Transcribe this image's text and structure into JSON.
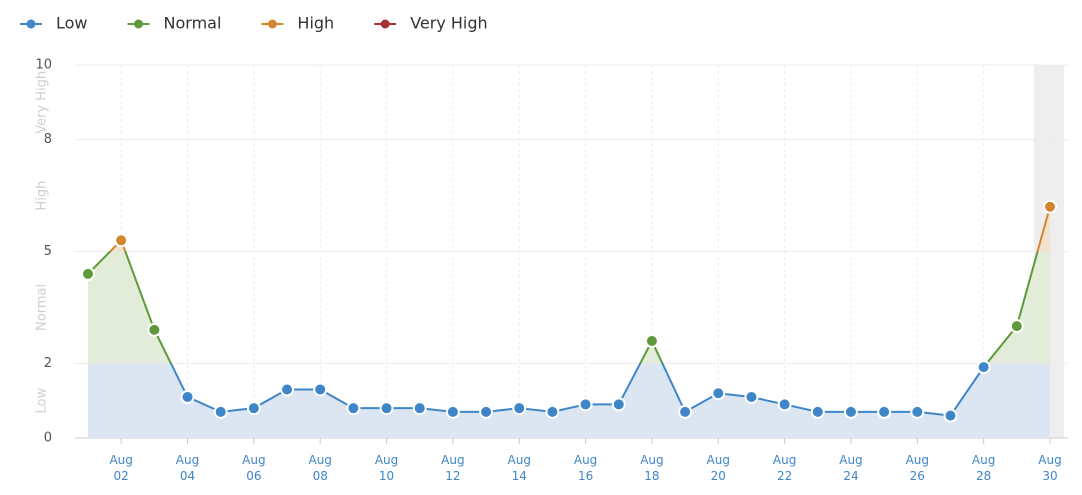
{
  "chart_data": {
    "type": "line",
    "categories": [
      null,
      "Aug 02",
      null,
      "Aug 04",
      null,
      "Aug 06",
      null,
      "Aug 08",
      null,
      "Aug 10",
      null,
      "Aug 12",
      null,
      "Aug 14",
      null,
      "Aug 16",
      null,
      "Aug 18",
      null,
      "Aug 20",
      null,
      "Aug 22",
      null,
      "Aug 24",
      null,
      "Aug 26",
      null,
      "Aug 28",
      null,
      "Aug 30"
    ],
    "values": [
      4.4,
      5.3,
      2.9,
      1.1,
      0.7,
      0.8,
      1.3,
      1.3,
      0.8,
      0.8,
      0.8,
      0.7,
      0.7,
      0.8,
      0.7,
      0.9,
      0.9,
      2.6,
      0.7,
      1.2,
      1.1,
      0.9,
      0.7,
      0.7,
      0.7,
      0.7,
      0.6,
      1.9,
      3.0,
      6.2
    ],
    "ylim": [
      0,
      10
    ],
    "yticks": [
      0,
      2,
      5,
      8,
      10
    ],
    "grid": true,
    "levels": [
      {
        "name": "Low",
        "color": "#3f86c8",
        "fill": "#dbe6f2",
        "range": [
          0,
          2
        ]
      },
      {
        "name": "Normal",
        "color": "#5e9a3a",
        "fill": "#e3ecd9",
        "range": [
          2,
          5
        ]
      },
      {
        "name": "High",
        "color": "#d4862e",
        "fill": "#f2e3d0",
        "range": [
          5,
          8
        ]
      },
      {
        "name": "Very High",
        "color": "#a83232",
        "fill": "#f0d6d6",
        "range": [
          8,
          10
        ]
      }
    ]
  }
}
